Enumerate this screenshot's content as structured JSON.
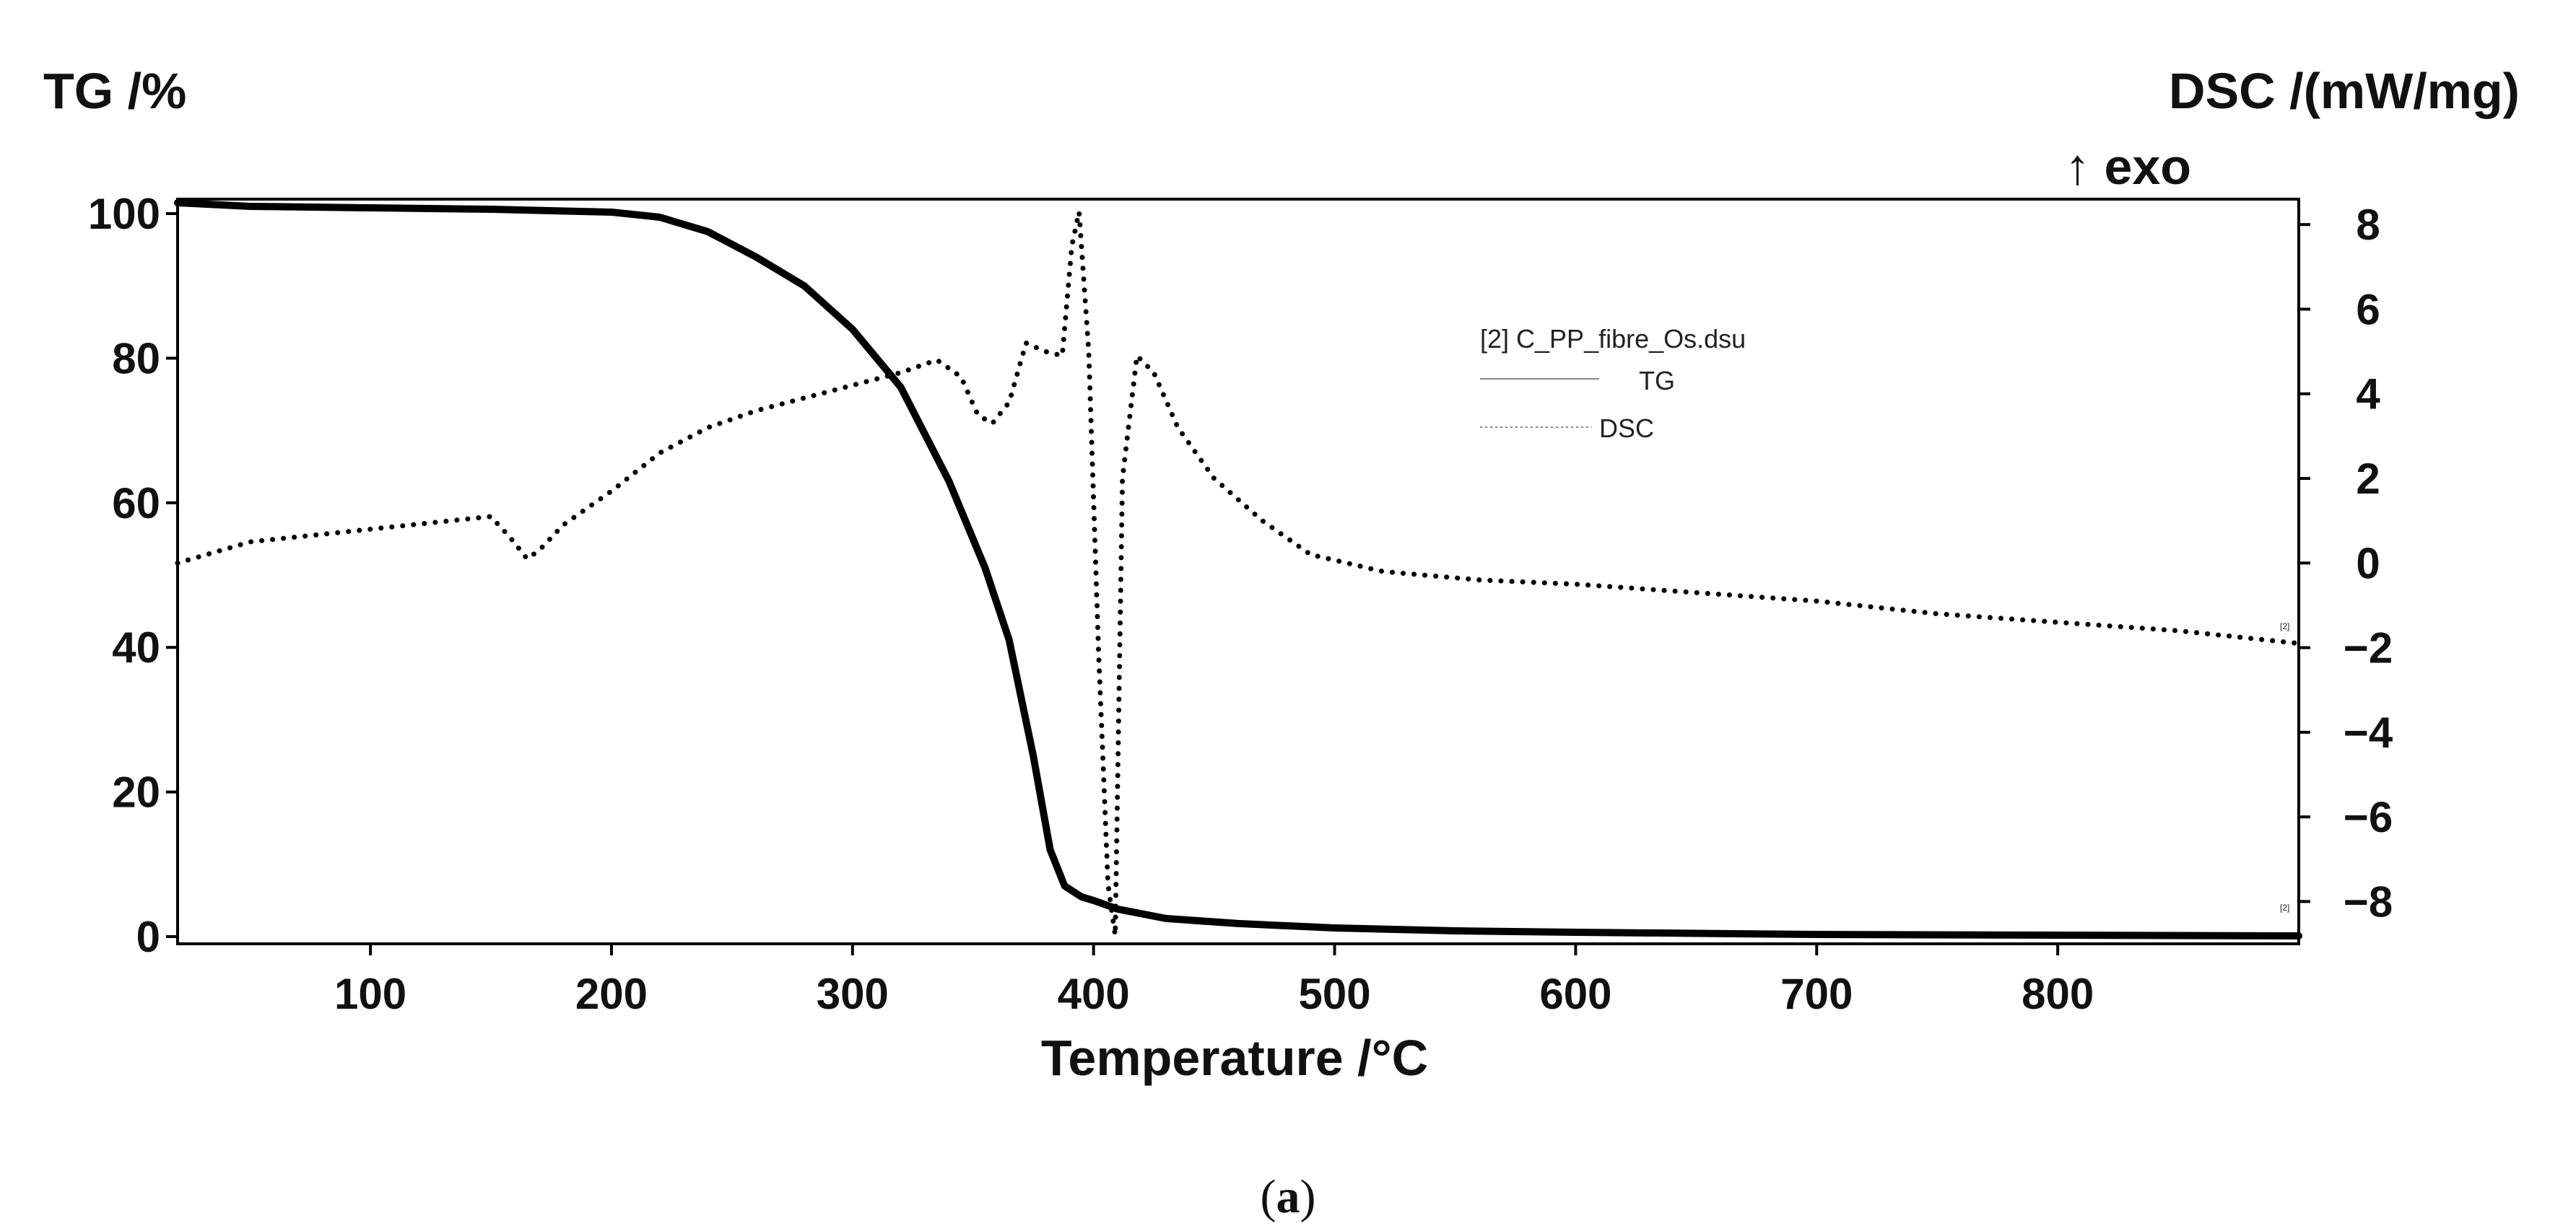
{
  "chart_data": {
    "type": "line",
    "caption": {
      "open": "(",
      "letter": "a",
      "close": ")"
    },
    "xlabel": "Temperature /°C",
    "y_left_label": "TG /%",
    "y_right_label": "DSC /(mW/mg)",
    "y_right_sublabel": "↑ exo",
    "xlim": [
      20,
      900
    ],
    "y_left_lim": [
      -1,
      102
    ],
    "y_right_lim": [
      -9,
      8.6
    ],
    "x_ticks": [
      100,
      200,
      300,
      400,
      500,
      600,
      700,
      800
    ],
    "y_left_ticks": [
      0,
      20,
      40,
      60,
      80,
      100
    ],
    "y_right_ticks": [
      8,
      6,
      4,
      2,
      0,
      -2,
      -4,
      -6,
      -8
    ],
    "y_right_tick_labels": [
      "8",
      "6",
      "4",
      "2",
      "0",
      "−2",
      "−4",
      "−6",
      "−8"
    ],
    "legend": {
      "file": "[2] C_PP_fibre_Os.dsu",
      "entries": [
        {
          "name": "TG",
          "style": "solid"
        },
        {
          "name": "DSC",
          "style": "dotted"
        }
      ]
    },
    "curve_end_markers": [
      "[2]",
      "[2]"
    ],
    "series": [
      {
        "name": "TG",
        "axis": "left",
        "style": "solid",
        "color": "#000000",
        "x": [
          20,
          50,
          100,
          150,
          200,
          220,
          240,
          260,
          280,
          300,
          320,
          340,
          355,
          365,
          375,
          382,
          388,
          395,
          400,
          410,
          430,
          460,
          500,
          550,
          600,
          700,
          800,
          900
        ],
        "y": [
          101.5,
          101,
          100.8,
          100.6,
          100.2,
          99.5,
          97.5,
          94,
          90,
          84,
          76,
          63,
          51,
          41,
          25,
          12,
          7,
          5.5,
          5,
          3.8,
          2.5,
          1.8,
          1.2,
          0.8,
          0.6,
          0.3,
          0.2,
          0.1
        ]
      },
      {
        "name": "DSC",
        "axis": "right",
        "style": "dotted",
        "color": "#000000",
        "x": [
          20,
          50,
          100,
          150,
          158,
          165,
          170,
          180,
          200,
          220,
          240,
          260,
          280,
          300,
          320,
          335,
          345,
          352,
          358,
          365,
          372,
          380,
          387,
          391,
          394,
          398,
          402,
          406,
          409,
          412,
          418,
          425,
          435,
          450,
          470,
          490,
          520,
          560,
          600,
          650,
          700,
          750,
          800,
          850,
          900
        ],
        "y": [
          0,
          0.5,
          0.8,
          1.1,
          0.6,
          0.1,
          0.3,
          0.9,
          1.7,
          2.6,
          3.2,
          3.6,
          3.9,
          4.2,
          4.5,
          4.8,
          4.4,
          3.5,
          3.3,
          3.8,
          5.2,
          5,
          4.9,
          7.5,
          8.3,
          5,
          -2,
          -7.6,
          -8.8,
          2,
          4.9,
          4.5,
          3.2,
          2,
          1,
          0.2,
          -0.2,
          -0.4,
          -0.5,
          -0.7,
          -0.9,
          -1.2,
          -1.4,
          -1.6,
          -1.9
        ]
      }
    ]
  }
}
